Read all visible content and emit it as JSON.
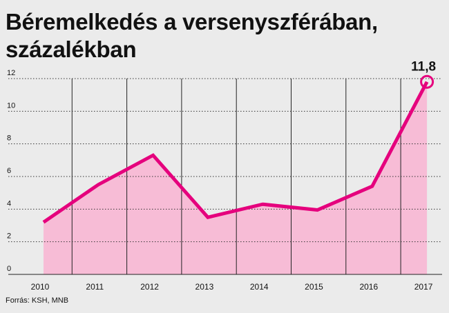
{
  "chart_data": {
    "type": "area",
    "title": "Béremelkedés a versenyszférában, százalékban",
    "categories": [
      "2010",
      "2011",
      "2012",
      "2013",
      "2014",
      "2015",
      "2016",
      "2017"
    ],
    "values": [
      3.2,
      5.5,
      7.3,
      3.5,
      4.3,
      3.95,
      5.4,
      11.8
    ],
    "ylim": [
      0,
      12
    ],
    "yticks": [
      "0",
      "2",
      "4",
      "6",
      "8",
      "10",
      "12"
    ],
    "annotation": {
      "label": "11,8",
      "category": "2017",
      "value": 11.8
    },
    "xlabel": "",
    "ylabel": "",
    "grid": true
  },
  "source": "Forrás: KSH, MNB",
  "colors": {
    "line": "#e5007d",
    "fill": "#f7bcd6",
    "background": "#ebebeb",
    "text": "#111111"
  }
}
